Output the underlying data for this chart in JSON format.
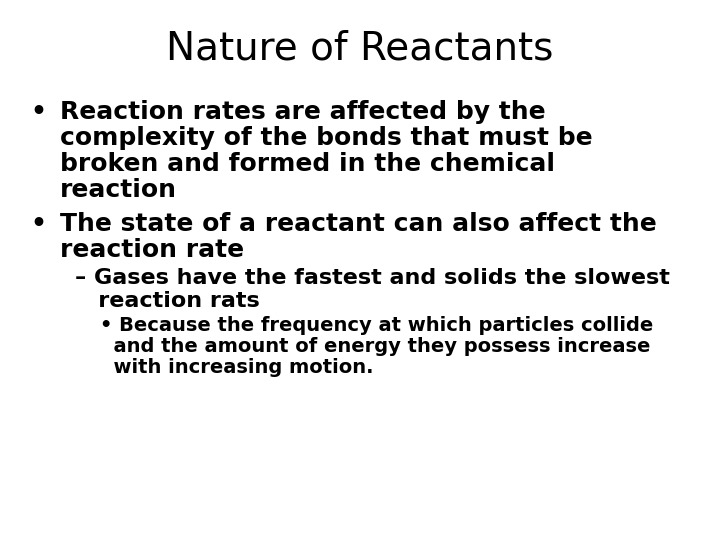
{
  "title": "Nature of Reactants",
  "background_color": "#ffffff",
  "text_color": "#000000",
  "title_fontsize": 28,
  "body_fontsize": 18,
  "sub_fontsize": 16,
  "subsub_fontsize": 14,
  "bullet1_line1": "Reaction rates are affected by the",
  "bullet1_line2": "complexity of the bonds that must be",
  "bullet1_line3": "broken and formed in the chemical",
  "bullet1_line4": "reaction",
  "bullet2_line1": "The state of a reactant can also affect the",
  "bullet2_line2": "reaction rate",
  "sub1_line1": "– Gases have the fastest and solids the slowest",
  "sub1_line2": "   reaction rats",
  "subsub1_line1": "• Because the frequency at which particles collide",
  "subsub1_line2": "  and the amount of energy they possess increase",
  "subsub1_line3": "  with increasing motion."
}
